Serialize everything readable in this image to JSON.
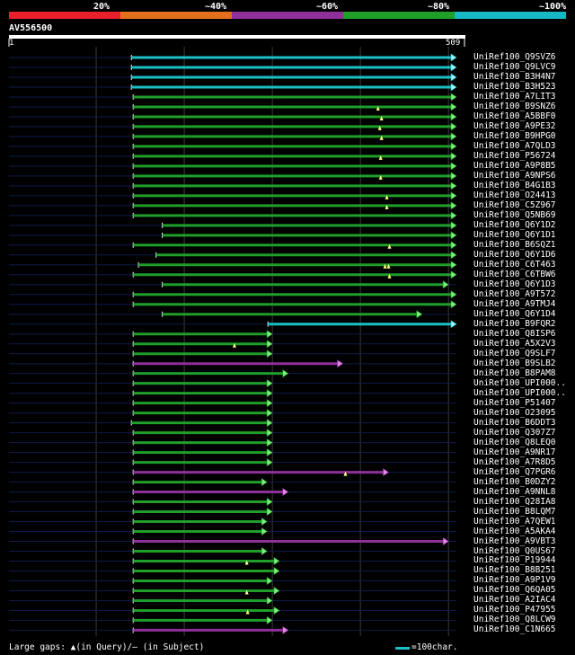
{
  "legend": {
    "segments": [
      {
        "label": "20%",
        "color": "#e8202a"
      },
      {
        "label": "~40%",
        "color": "#e4701d"
      },
      {
        "label": "~60%",
        "color": "#8e2f9a"
      },
      {
        "label": "~80%",
        "color": "#1f9e2a"
      },
      {
        "label": "~100%",
        "color": "#18b7c4"
      }
    ]
  },
  "query": {
    "id": "AV556500",
    "start": "1",
    "end": "509"
  },
  "footer": {
    "gaps_text": "Large gaps: ▲(in Query)/— (in Subject)",
    "scale_text": "=100char."
  },
  "hits": [
    {
      "label": "UniRef100_Q9SVZ6",
      "s": 140,
      "e": 509,
      "c": "cyan",
      "marks": []
    },
    {
      "label": "UniRef100_Q9LVC9",
      "s": 140,
      "e": 509,
      "c": "cyan",
      "marks": []
    },
    {
      "label": "UniRef100_B3H4N7",
      "s": 140,
      "e": 509,
      "c": "cyan",
      "marks": []
    },
    {
      "label": "UniRef100_B3H523",
      "s": 140,
      "e": 509,
      "c": "cyan",
      "marks": []
    },
    {
      "label": "UniRef100_A7LIT3",
      "s": 142,
      "e": 509,
      "c": "green",
      "marks": []
    },
    {
      "label": "UniRef100_B9SNZ6",
      "s": 142,
      "e": 509,
      "c": "green",
      "marks": [
        420
      ]
    },
    {
      "label": "UniRef100_A5BBF0",
      "s": 142,
      "e": 509,
      "c": "green",
      "marks": [
        424
      ]
    },
    {
      "label": "UniRef100_A9PE32",
      "s": 142,
      "e": 509,
      "c": "green",
      "marks": [
        422
      ]
    },
    {
      "label": "UniRef100_B9HPG0",
      "s": 142,
      "e": 509,
      "c": "green",
      "marks": [
        424
      ]
    },
    {
      "label": "UniRef100_A7QLD3",
      "s": 142,
      "e": 509,
      "c": "green",
      "marks": []
    },
    {
      "label": "UniRef100_P56724",
      "s": 142,
      "e": 509,
      "c": "green",
      "marks": [
        423
      ]
    },
    {
      "label": "UniRef100_A9P8B5",
      "s": 142,
      "e": 509,
      "c": "green",
      "marks": []
    },
    {
      "label": "UniRef100_A9NPS6",
      "s": 142,
      "e": 509,
      "c": "green",
      "marks": [
        423
      ]
    },
    {
      "label": "UniRef100_B4G1B3",
      "s": 142,
      "e": 509,
      "c": "green",
      "marks": []
    },
    {
      "label": "UniRef100_O24413",
      "s": 142,
      "e": 509,
      "c": "green",
      "marks": [
        430
      ]
    },
    {
      "label": "UniRef100_C5Z967",
      "s": 142,
      "e": 509,
      "c": "green",
      "marks": [
        430
      ]
    },
    {
      "label": "UniRef100_Q5NB69",
      "s": 142,
      "e": 509,
      "c": "green",
      "marks": []
    },
    {
      "label": "UniRef100_Q6Y1D2",
      "s": 175,
      "e": 509,
      "c": "green",
      "marks": []
    },
    {
      "label": "UniRef100_Q6Y1D1",
      "s": 175,
      "e": 509,
      "c": "green",
      "marks": []
    },
    {
      "label": "UniRef100_B6SQZ1",
      "s": 142,
      "e": 509,
      "c": "green",
      "marks": [
        433
      ]
    },
    {
      "label": "UniRef100_Q6Y1D6",
      "s": 168,
      "e": 509,
      "c": "green",
      "marks": []
    },
    {
      "label": "UniRef100_C6T463",
      "s": 148,
      "e": 509,
      "c": "green",
      "marks": [
        428,
        432
      ]
    },
    {
      "label": "UniRef100_C6TBW6",
      "s": 142,
      "e": 509,
      "c": "green",
      "marks": [
        433
      ]
    },
    {
      "label": "UniRef100_Q6Y1D3",
      "s": 175,
      "e": 500,
      "c": "green",
      "marks": []
    },
    {
      "label": "UniRef100_A9T572",
      "s": 142,
      "e": 509,
      "c": "green",
      "marks": []
    },
    {
      "label": "UniRef100_A9TMJ4",
      "s": 142,
      "e": 509,
      "c": "green",
      "marks": []
    },
    {
      "label": "UniRef100_Q6Y1D4",
      "s": 175,
      "e": 470,
      "c": "green",
      "marks": []
    },
    {
      "label": "UniRef100_B9FQR2",
      "s": 295,
      "e": 509,
      "c": "cyan",
      "marks": []
    },
    {
      "label": "UniRef100_Q8ISP6",
      "s": 142,
      "e": 300,
      "c": "green",
      "marks": []
    },
    {
      "label": "UniRef100_A5X2V3",
      "s": 142,
      "e": 300,
      "c": "green",
      "marks": [
        257
      ]
    },
    {
      "label": "UniRef100_Q9SLF7",
      "s": 142,
      "e": 300,
      "c": "green",
      "marks": []
    },
    {
      "label": "UniRef100_B9SLB2",
      "s": 142,
      "e": 380,
      "c": "purple",
      "marks": []
    },
    {
      "label": "UniRef100_B8PAM8",
      "s": 142,
      "e": 318,
      "c": "green",
      "marks": []
    },
    {
      "label": "UniRef100_UPI000..",
      "s": 142,
      "e": 300,
      "c": "green",
      "marks": []
    },
    {
      "label": "UniRef100_UPI000..",
      "s": 142,
      "e": 300,
      "c": "green",
      "marks": []
    },
    {
      "label": "UniRef100_P51407",
      "s": 142,
      "e": 300,
      "c": "green",
      "marks": []
    },
    {
      "label": "UniRef100_O23095",
      "s": 142,
      "e": 300,
      "c": "green",
      "marks": []
    },
    {
      "label": "UniRef100_B6DDT3",
      "s": 140,
      "e": 300,
      "c": "green",
      "marks": []
    },
    {
      "label": "UniRef100_Q307Z7",
      "s": 142,
      "e": 300,
      "c": "green",
      "marks": []
    },
    {
      "label": "UniRef100_Q8LEQ0",
      "s": 142,
      "e": 300,
      "c": "green",
      "marks": []
    },
    {
      "label": "UniRef100_A9NR17",
      "s": 142,
      "e": 300,
      "c": "green",
      "marks": []
    },
    {
      "label": "UniRef100_A7R8D5",
      "s": 142,
      "e": 300,
      "c": "green",
      "marks": []
    },
    {
      "label": "UniRef100_Q7PGR6",
      "s": 142,
      "e": 432,
      "c": "purple",
      "marks": [
        383
      ]
    },
    {
      "label": "UniRef100_B0DZY2",
      "s": 142,
      "e": 294,
      "c": "green",
      "marks": []
    },
    {
      "label": "UniRef100_A9NNL8",
      "s": 142,
      "e": 318,
      "c": "purple",
      "marks": []
    },
    {
      "label": "UniRef100_Q28IA8",
      "s": 142,
      "e": 300,
      "c": "green",
      "marks": []
    },
    {
      "label": "UniRef100_B8LQM7",
      "s": 142,
      "e": 300,
      "c": "green",
      "marks": []
    },
    {
      "label": "UniRef100_A7QEW1",
      "s": 142,
      "e": 294,
      "c": "green",
      "marks": []
    },
    {
      "label": "UniRef100_A5AKA4",
      "s": 142,
      "e": 294,
      "c": "green",
      "marks": []
    },
    {
      "label": "UniRef100_A9VBT3",
      "s": 142,
      "e": 500,
      "c": "purple",
      "marks": []
    },
    {
      "label": "UniRef100_Q0US67",
      "s": 142,
      "e": 294,
      "c": "green",
      "marks": []
    },
    {
      "label": "UniRef100_P19944",
      "s": 142,
      "e": 308,
      "c": "green",
      "marks": [
        271
      ]
    },
    {
      "label": "UniRef100_B8B251",
      "s": 142,
      "e": 308,
      "c": "green",
      "marks": []
    },
    {
      "label": "UniRef100_A9P1V9",
      "s": 142,
      "e": 300,
      "c": "green",
      "marks": []
    },
    {
      "label": "UniRef100_Q6QA05",
      "s": 142,
      "e": 308,
      "c": "green",
      "marks": [
        271
      ]
    },
    {
      "label": "UniRef100_A2IAC4",
      "s": 142,
      "e": 300,
      "c": "green",
      "marks": []
    },
    {
      "label": "UniRef100_P47955",
      "s": 142,
      "e": 308,
      "c": "green",
      "marks": [
        272
      ]
    },
    {
      "label": "UniRef100_Q8LCW9",
      "s": 142,
      "e": 300,
      "c": "green",
      "marks": []
    },
    {
      "label": "UniRef100_C1N665",
      "s": 142,
      "e": 318,
      "c": "purple",
      "marks": []
    }
  ]
}
